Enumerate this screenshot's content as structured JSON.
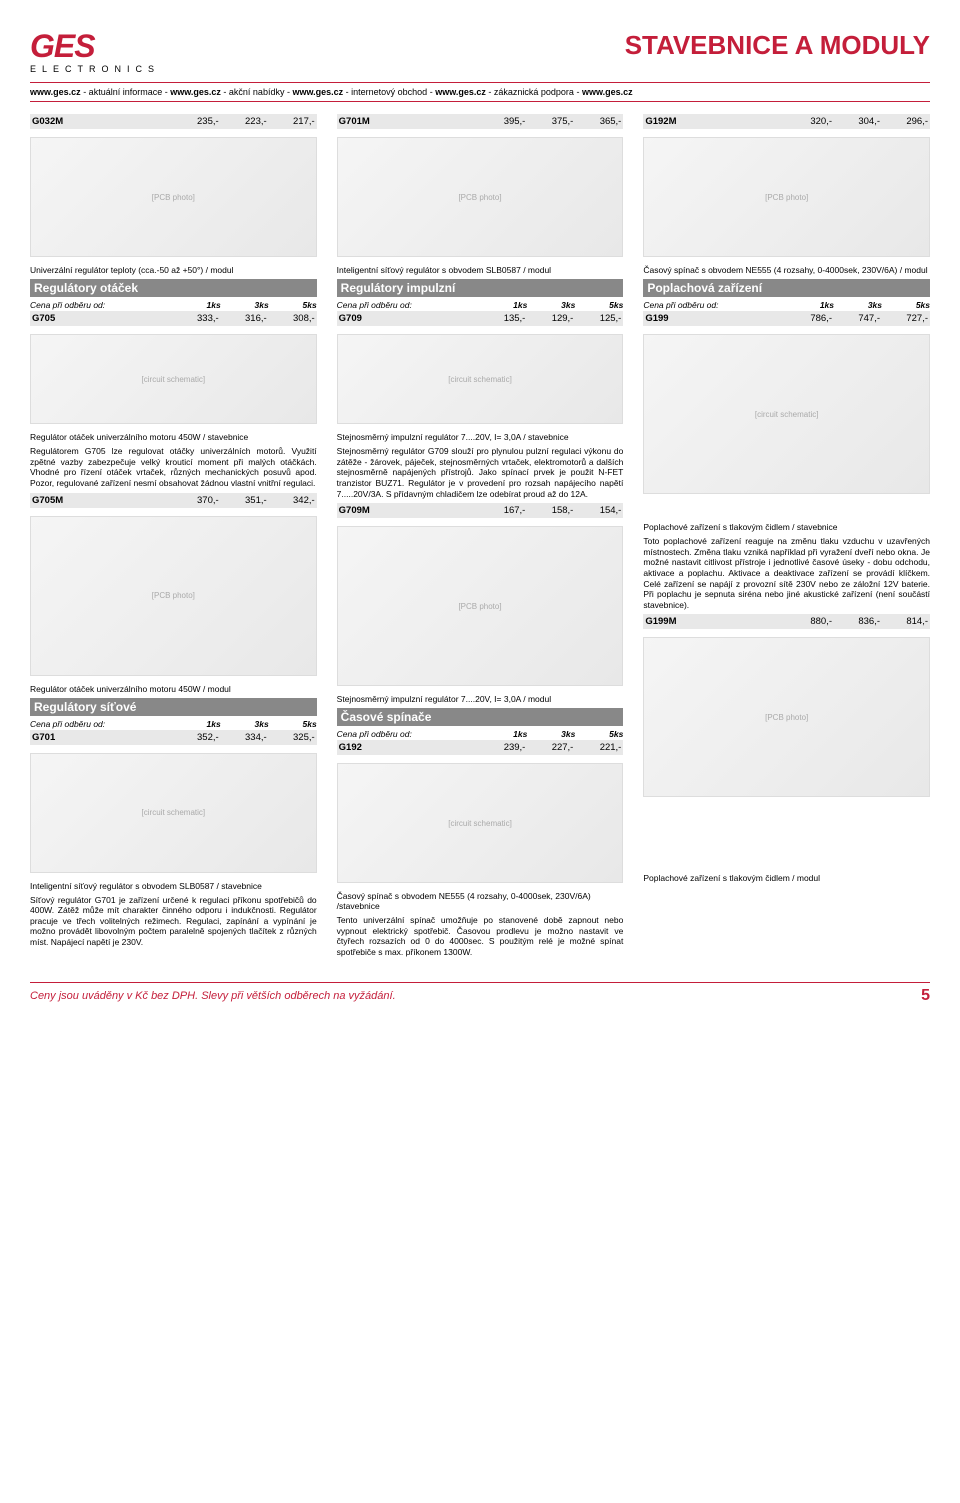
{
  "header": {
    "logo_main": "GES",
    "logo_sub": "ELECTRONICS",
    "page_title": "STAVEBNICE A MODULY"
  },
  "urls": [
    {
      "b": "www.ges.cz",
      "t": " - aktuální informace - "
    },
    {
      "b": "www.ges.cz",
      "t": " - akční nabídky - "
    },
    {
      "b": "www.ges.cz",
      "t": " - internetový obchod - "
    },
    {
      "b": "www.ges.cz",
      "t": " - zákaznická podpora - "
    },
    {
      "b": "www.ges.cz",
      "t": ""
    }
  ],
  "price_header": {
    "label": "Cena při odběru od:",
    "c1": "1ks",
    "c2": "3ks",
    "c3": "5ks"
  },
  "col1": {
    "r1": {
      "code": "G032M",
      "p1": "235,-",
      "p2": "223,-",
      "p3": "217,-"
    },
    "d1": "Univerzální regulátor teploty (cca.-50 až +50°) / modul",
    "sec1": "Regulátory otáček",
    "r2": {
      "code": "G705",
      "p1": "333,-",
      "p2": "316,-",
      "p3": "308,-"
    },
    "d2": "Regulátor otáček univerzálního motoru 450W / stavebnice",
    "body1": "Regulátorem G705 lze regulovat otáčky univerzálních motorů. Využití zpětné vazby zabezpečuje velký krouticí moment při malých otáčkách. Vhodné pro řízení otáček vrtaček, různých mechanických posuvů apod. Pozor, regulované zařízení nesmí obsahovat žádnou vlastní vnitřní regulaci.",
    "r3": {
      "code": "G705M",
      "p1": "370,-",
      "p2": "351,-",
      "p3": "342,-"
    },
    "d3": "Regulátor otáček univerzálního motoru 450W / modul",
    "sec2": "Regulátory síťové",
    "r4": {
      "code": "G701",
      "p1": "352,-",
      "p2": "334,-",
      "p3": "325,-"
    },
    "d4": "Inteligentní síťový regulátor s obvodem SLB0587 / stavebnice",
    "body2": "Síťový regulátor G701 je zařízení určené k regulaci příkonu spotřebičů do 400W. Zátěž může mít charakter činného odporu i indukčnosti. Regulátor pracuje ve třech volitelných režimech. Regulaci, zapínání a vypínání je možno provádět libovolným počtem paralelně spojených tlačítek z různých míst. Napájecí napětí je 230V."
  },
  "col2": {
    "r1": {
      "code": "G701M",
      "p1": "395,-",
      "p2": "375,-",
      "p3": "365,-"
    },
    "d1": "Inteligentní síťový regulátor s obvodem SLB0587 / modul",
    "sec1": "Regulátory impulzní",
    "r2": {
      "code": "G709",
      "p1": "135,-",
      "p2": "129,-",
      "p3": "125,-"
    },
    "d2": "Stejnosměrný impulzní regulátor 7....20V, I= 3,0A / stavebnice",
    "body1": "Stejnosměrný regulátor G709 slouží pro plynulou pulzní regulaci výkonu do zátěže - žárovek, páječek, stejnosměrných vrtaček, elektromotorů a dalších stejnosměrně napájených přístrojů. Jako spínací prvek je použit N-FET tranzistor BUZ71. Regulátor je v provedení pro rozsah napájecího napětí 7.....20V/3A. S přídavným chladičem lze odebírat proud až do 12A.",
    "r3": {
      "code": "G709M",
      "p1": "167,-",
      "p2": "158,-",
      "p3": "154,-"
    },
    "d3": "Stejnosměrný impulzní regulátor 7....20V, I= 3,0A / modul",
    "sec2": "Časové spínače",
    "r4": {
      "code": "G192",
      "p1": "239,-",
      "p2": "227,-",
      "p3": "221,-"
    },
    "d4": "Časový spínač s obvodem NE555 (4 rozsahy, 0-4000sek, 230V/6A) /stavebnice",
    "body2": "Tento univerzální spínač umožňuje po stanovené době zapnout nebo vypnout elektrický spotřebič. Časovou prodlevu je možno nastavit ve čtyřech rozsazích od 0 do 4000sec. S použitým relé je možné spínat spotřebiče s max. příkonem 1300W."
  },
  "col3": {
    "r1": {
      "code": "G192M",
      "p1": "320,-",
      "p2": "304,-",
      "p3": "296,-"
    },
    "d1": "Časový spínač s obvodem NE555 (4 rozsahy, 0-4000sek, 230V/6A) / modul",
    "sec1": "Poplachová zařízení",
    "r2": {
      "code": "G199",
      "p1": "786,-",
      "p2": "747,-",
      "p3": "727,-"
    },
    "d2": "Poplachové zařízení s tlakovým čidlem / stavebnice",
    "body1": "Toto poplachové zařízení reaguje na změnu tlaku vzduchu v uzavřených místnostech. Změna tlaku vzniká například při vyražení dveří nebo okna. Je možné nastavit citlivost přístroje i jednotlivé časové úseky - dobu odchodu, aktivace a poplachu. Aktivace a deaktivace zařízení se provádí klíčkem. Celé zařízení se napájí z provozní sítě 230V nebo ze záložní 12V baterie. Při poplachu je sepnuta siréna nebo jiné akustické zařízení (není součástí stavebnice).",
    "r3": {
      "code": "G199M",
      "p1": "880,-",
      "p2": "836,-",
      "p3": "814,-"
    },
    "d3": "Poplachové zařízení s tlakovým čidlem / modul"
  },
  "footer": {
    "text": "Ceny jsou uváděny v Kč bez DPH. Slevy při větších odběrech na vyžádání.",
    "page": "5"
  },
  "ph": {
    "pcb": "[PCB photo]",
    "sch": "[circuit schematic]"
  }
}
